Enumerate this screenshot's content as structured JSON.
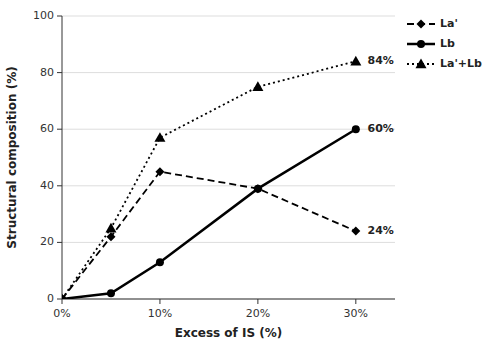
{
  "chart_data": {
    "type": "line",
    "x_label": "Excess of IS (%)",
    "y_label": "Structural composition (%)",
    "x": [
      0,
      5,
      10,
      20,
      30
    ],
    "series": [
      {
        "name": "La'",
        "color": "black",
        "marker": "diamond",
        "line_style": "dashed",
        "values": [
          0,
          22,
          45,
          39,
          24
        ]
      },
      {
        "name": "Lb",
        "color": "black",
        "marker": "circle",
        "line_style": "solid",
        "values": [
          0,
          2,
          13,
          39,
          60
        ]
      },
      {
        "name": "La'+Lb",
        "color": "black",
        "marker": "triangle",
        "line_style": "dotted",
        "values": [
          0,
          25,
          57,
          75,
          84
        ]
      }
    ],
    "xlim": [
      0,
      34
    ],
    "ylim": [
      0,
      100
    ],
    "xticks": [
      {
        "value": 0,
        "label": "0%"
      },
      {
        "value": 10,
        "label": "10%"
      },
      {
        "value": 20,
        "label": "20%"
      },
      {
        "value": 30,
        "label": "30%"
      }
    ],
    "yticks": [
      0,
      20,
      40,
      60,
      80,
      100
    ],
    "grid": true,
    "legend": "right",
    "annotations": [
      {
        "text": "84%",
        "x": 31.2,
        "y": 84
      },
      {
        "text": "60%",
        "x": 31.2,
        "y": 60
      },
      {
        "text": "24%",
        "x": 31.2,
        "y": 24
      }
    ]
  }
}
